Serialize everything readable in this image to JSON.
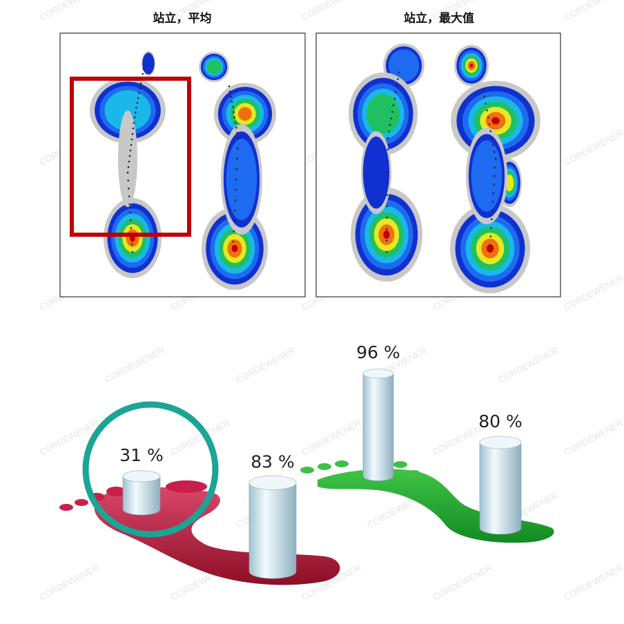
{
  "panels": [
    {
      "title": "站立，平均"
    },
    {
      "title": "站立，最大值"
    }
  ],
  "pillars": [
    {
      "value": 31,
      "label": "31 %"
    },
    {
      "value": 83,
      "label": "83 %"
    },
    {
      "value": 96,
      "label": "96 %"
    },
    {
      "value": 80,
      "label": "80 %"
    }
  ],
  "watermark": "CORDEWENER"
}
